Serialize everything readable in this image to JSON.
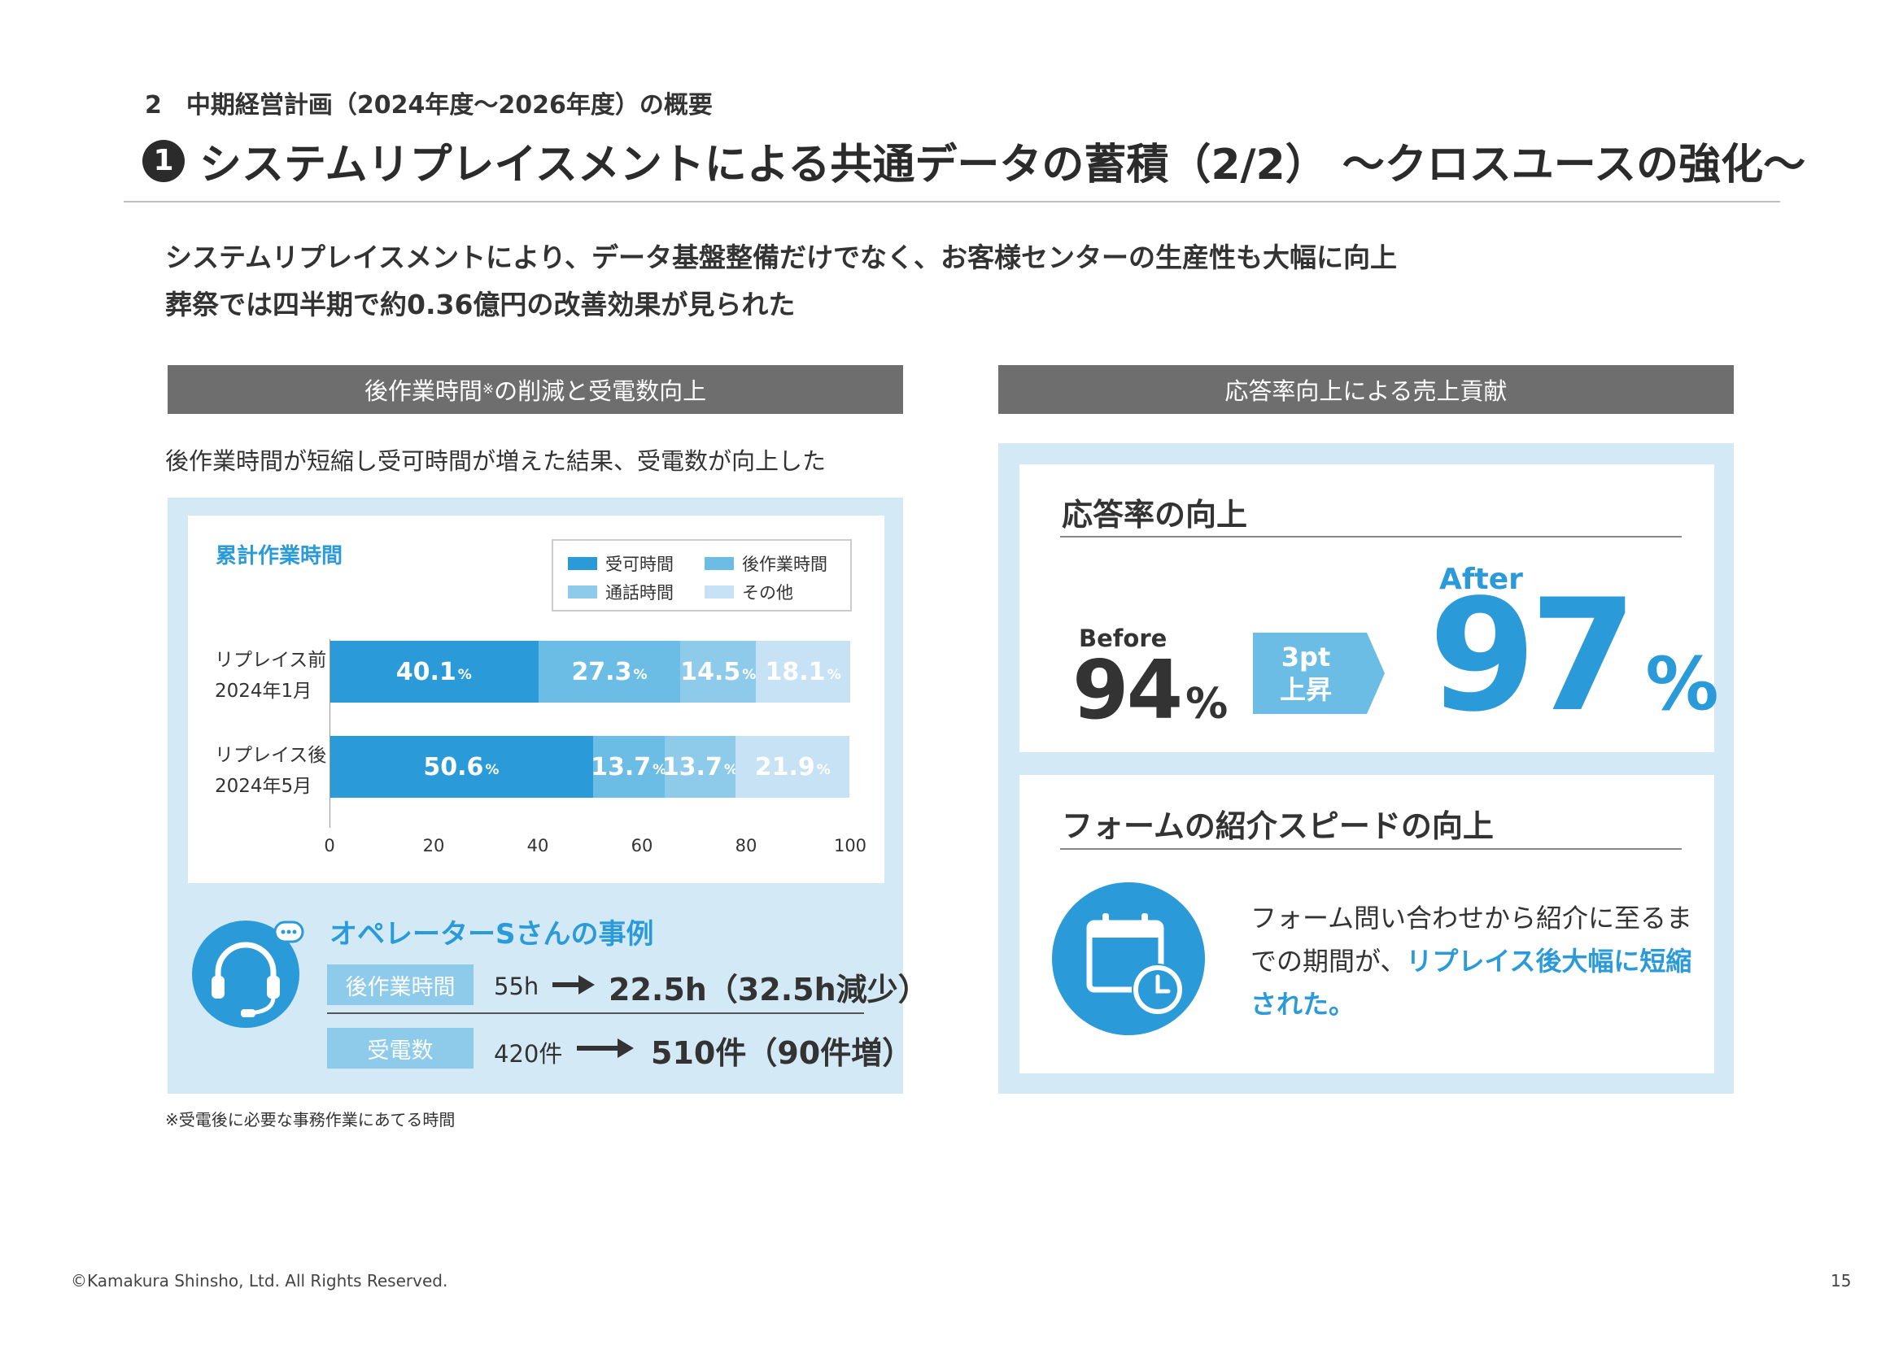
{
  "header": {
    "section": "2　中期経営計画（2024年度～2026年度）の概要",
    "title_number": "1",
    "title": "システムリプレイスメントによる共通データの蓄積（2/2） ～クロスユースの強化～"
  },
  "lead": {
    "line1": "システムリプレイスメントにより、データ基盤整備だけでなく、お客様センターの生産性も大幅に向上",
    "line2": "葬祭では四半期で約0.36億円の改善効果が見られた"
  },
  "left": {
    "header": "後作業時間",
    "header_note": "※",
    "header_tail": "の削減と受電数向上",
    "caption": "後作業時間が短縮し受可時間が増えた結果、受電数が向上した",
    "chart_title": "累計作業時間",
    "footnote": "※受電後に必要な事務作業にあてる時間"
  },
  "chart_data": {
    "type": "bar",
    "orientation": "horizontal",
    "stacked": true,
    "title": "累計作業時間",
    "categories": [
      {
        "label": "リプレイス前",
        "sublabel": "2024年1月"
      },
      {
        "label": "リプレイス後",
        "sublabel": "2024年5月"
      }
    ],
    "series": [
      {
        "name": "受可時間",
        "color": "#2b9ad8",
        "values": [
          40.1,
          50.6
        ]
      },
      {
        "name": "後作業時間",
        "color": "#6cbde6",
        "values": [
          27.3,
          13.7
        ]
      },
      {
        "name": "通話時間",
        "color": "#8ecbea",
        "values": [
          14.5,
          13.7
        ]
      },
      {
        "name": "その他",
        "color": "#c6e2f4",
        "values": [
          18.1,
          21.9
        ]
      }
    ],
    "unit": "%",
    "xlim": [
      0,
      100
    ],
    "xticks": [
      "0",
      "20",
      "40",
      "60",
      "80",
      "100"
    ],
    "legend": "top-right",
    "grid": false
  },
  "case": {
    "title": "オペレーターSさんの事例",
    "rows": [
      {
        "tag": "後作業時間",
        "before": "55h",
        "after": "22.5h（32.5h減少）"
      },
      {
        "tag": "受電数",
        "before": "420件",
        "after": "510件（90件増）"
      }
    ]
  },
  "right": {
    "header": "応答率向上による売上貢献",
    "response": {
      "heading": "応答率の向上",
      "before_label": "Before",
      "before_value": "94",
      "before_unit": "%",
      "badge_line1": "3pt",
      "badge_line2": "上昇",
      "after_label": "After",
      "after_value": "97",
      "after_unit": "%"
    },
    "form": {
      "heading": "フォームの紹介スピードの向上",
      "text_plain": "フォーム問い合わせから紹介に至るまでの期間が、",
      "text_highlight": "リプレイス後大幅に短縮された。"
    }
  },
  "footer": {
    "copyright": "©Kamakura Shinsho, Ltd. All Rights Reserved.",
    "page": "15"
  },
  "colors": {
    "accent": "#2b9ad8",
    "panel": "#d3e9f6",
    "header_bar": "#6e6e6e"
  }
}
